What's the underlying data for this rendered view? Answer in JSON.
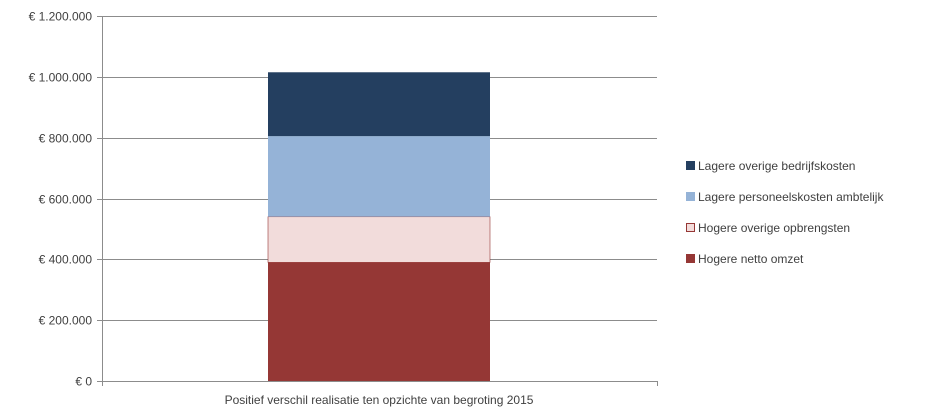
{
  "chart_data": {
    "type": "bar",
    "stacked": true,
    "categories": [
      "Positief verschil realisatie ten opzichte van begroting 2015"
    ],
    "series": [
      {
        "name": "Hogere netto omzet",
        "values": [
          390000
        ],
        "color": "#953735"
      },
      {
        "name": "Hogere overige opbrengsten",
        "values": [
          150000
        ],
        "color": "#f2dcdb"
      },
      {
        "name": "Lagere personeelskosten ambtelijk",
        "values": [
          265000
        ],
        "color": "#95b3d7"
      },
      {
        "name": "Lagere overige bedrijfskosten",
        "values": [
          210000
        ],
        "color": "#243f60"
      }
    ],
    "ylim": [
      0,
      1200000
    ],
    "yticks": [
      0,
      200000,
      400000,
      600000,
      800000,
      1000000,
      1200000
    ],
    "ytick_labels": [
      "€ 0",
      "€ 200.000",
      "€ 400.000",
      "€ 600.000",
      "€ 800.000",
      "€ 1.000.000",
      "€ 1.200.000"
    ],
    "grid": true,
    "legend_position": "right",
    "legend_order": [
      "Lagere overige bedrijfskosten",
      "Lagere personeelskosten ambtelijk",
      "Hogere overige opbrengsten",
      "Hogere netto omzet"
    ]
  }
}
